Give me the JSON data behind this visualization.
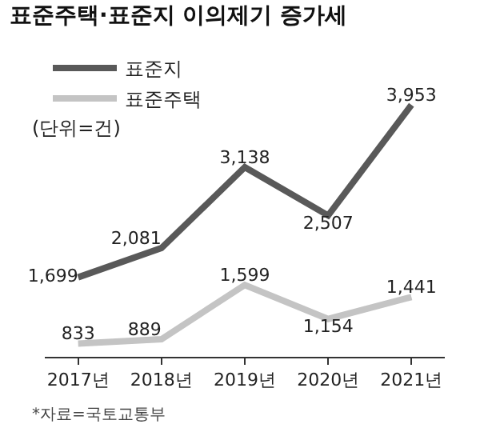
{
  "chart_data": {
    "type": "line",
    "title": "표준주택·표준지 이의제기 증가세",
    "subtitle": "(단위=건)",
    "categories": [
      "2017년",
      "2018년",
      "2019년",
      "2020년",
      "2021년"
    ],
    "series": [
      {
        "name": "표준지",
        "color": "#595959",
        "values": [
          1699,
          2081,
          3138,
          2507,
          3953
        ],
        "value_labels": [
          "1,699",
          "2,081",
          "3,138",
          "2,507",
          "3,953"
        ]
      },
      {
        "name": "표준주택",
        "color": "#c4c4c4",
        "values": [
          833,
          889,
          1599,
          1154,
          1441
        ],
        "value_labels": [
          "833",
          "889",
          "1,599",
          "1,154",
          "1,441"
        ]
      }
    ],
    "tick_labels": "x",
    "legend": "top left",
    "grid": false,
    "marker": "none",
    "line_style": "solid",
    "annotations": [
      "*자료=국토교통부"
    ]
  }
}
